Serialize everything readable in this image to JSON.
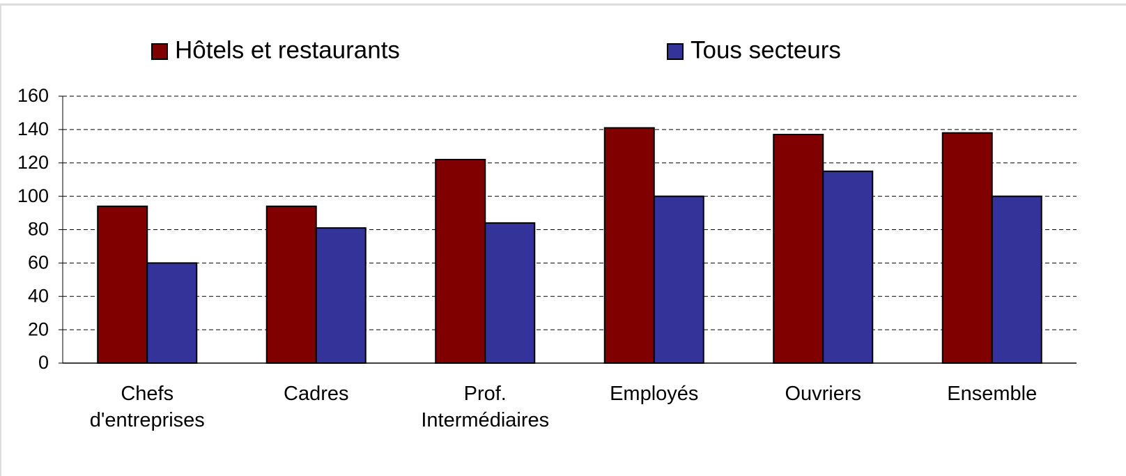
{
  "chart_data": {
    "type": "bar",
    "categories": [
      "Chefs d'entreprises",
      "Cadres",
      "Prof. Intermédiaires",
      "Employés",
      "Ouvriers",
      "Ensemble"
    ],
    "series": [
      {
        "name": "Hôtels et restaurants",
        "color": "#800000",
        "values": [
          94,
          94,
          122,
          141,
          137,
          138
        ]
      },
      {
        "name": "Tous secteurs",
        "color": "#333399",
        "values": [
          60,
          81,
          84,
          100,
          115,
          100
        ]
      }
    ],
    "ylim": [
      0,
      160
    ],
    "yticks": [
      0,
      20,
      40,
      60,
      80,
      100,
      120,
      140,
      160
    ],
    "grid": true,
    "legend": "top"
  }
}
